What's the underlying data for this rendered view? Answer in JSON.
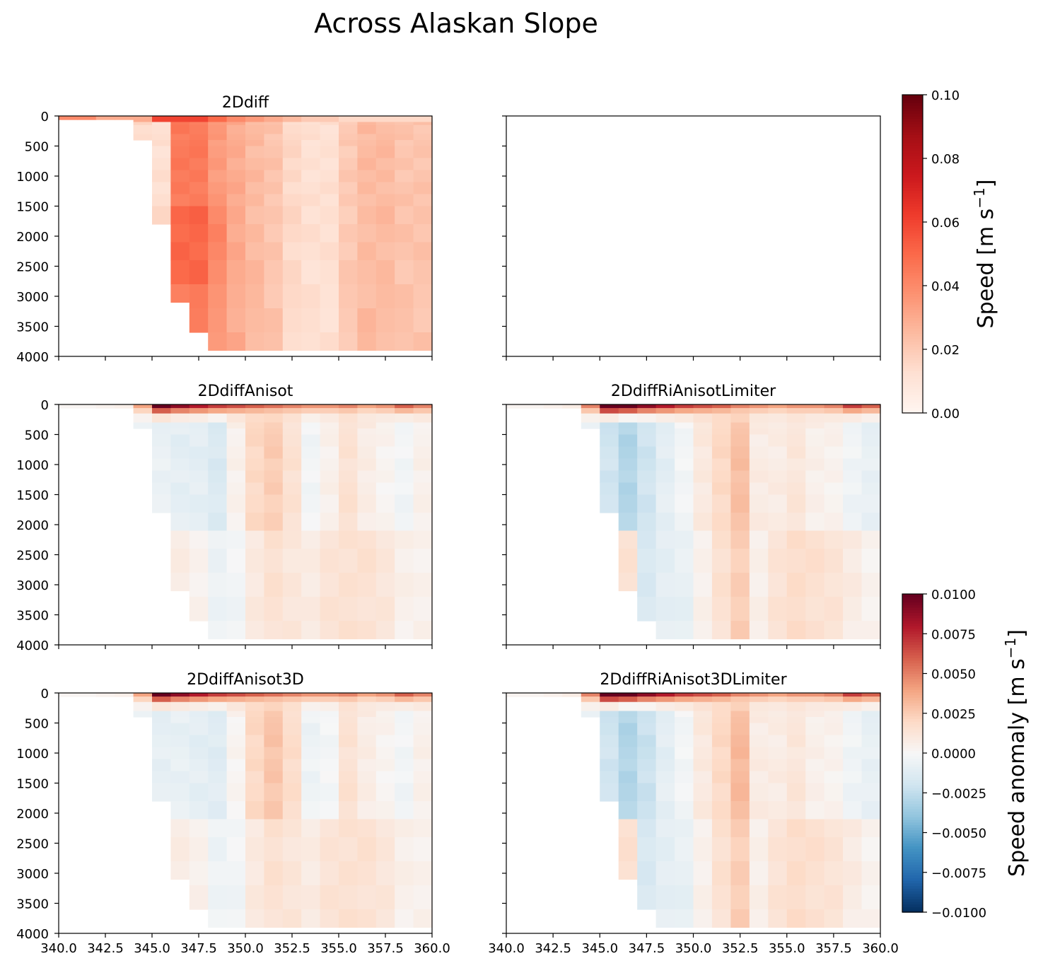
{
  "figure": {
    "title": "Across Alaskan Slope",
    "subplot_titles": [
      "2Ddiff",
      "",
      "2DdiffAnisot",
      "2DdiffRiAnisotLimiter",
      "2DdiffAnisot3D",
      "2DdiffRiAnisot3DLimiter"
    ]
  },
  "colorbars": {
    "speed": {
      "label": "Speed [m s",
      "label_sup": "−1",
      "label_tail": "]",
      "ticks": [
        "0.00",
        "0.02",
        "0.04",
        "0.06",
        "0.08",
        "0.10"
      ],
      "range": [
        0,
        0.1
      ],
      "colormap": "Reds"
    },
    "anomaly": {
      "label": "Speed anomaly [m s",
      "label_sup": "−1",
      "label_tail": "]",
      "ticks": [
        "−0.0100",
        "−0.0075",
        "−0.0050",
        "−0.0025",
        "0.0000",
        "0.0025",
        "0.0050",
        "0.0075",
        "0.0100"
      ],
      "range": [
        -0.01,
        0.01
      ],
      "colormap": "RdBu_r"
    }
  },
  "chart_data": [
    {
      "type": "heatmap",
      "title": "2Ddiff",
      "xlabel": "",
      "ylabel": "",
      "xlim": [
        340,
        360
      ],
      "ylim": [
        4000,
        0
      ],
      "x_edges": [
        340,
        341,
        342,
        343,
        344,
        345,
        346,
        347,
        348,
        349,
        350,
        351,
        352,
        353,
        354,
        355,
        356,
        357,
        358,
        359,
        360
      ],
      "depth_edges": [
        0,
        30,
        60,
        100,
        150,
        200,
        300,
        400,
        500,
        700,
        900,
        1100,
        1300,
        1500,
        1800,
        2100,
        2400,
        2800,
        3200,
        3600,
        3900
      ],
      "bottom_depth": [
        60,
        60,
        60,
        60,
        400,
        1800,
        3100,
        3600,
        3900,
        3900,
        3900,
        3900,
        3900,
        3900,
        3900,
        3900,
        3900,
        3900,
        3900,
        3900
      ],
      "profiles": [
        0.04,
        0.04,
        0.03,
        0.03,
        0.015,
        0.012,
        0.045,
        0.045,
        0.035,
        0.03,
        0.025,
        0.022,
        0.015,
        0.012,
        0.012,
        0.02,
        0.025,
        0.025,
        0.022,
        0.022
      ],
      "surface": [
        0.04,
        0.04,
        0.03,
        0.03,
        0.03,
        0.06,
        0.06,
        0.06,
        0.05,
        0.04,
        0.035,
        0.03,
        0.025,
        0.02,
        0.02,
        0.015,
        0.015,
        0.015,
        0.015,
        0.015
      ],
      "value_range": [
        0,
        0.1
      ]
    },
    {
      "type": "heatmap",
      "title": "",
      "xlim": [
        340,
        360
      ],
      "ylim": [
        4000,
        0
      ],
      "empty": true
    },
    {
      "type": "heatmap",
      "title": "2DdiffAnisot",
      "xlim": [
        340,
        360
      ],
      "ylim": [
        4000,
        0
      ],
      "surface": [
        0.0002,
        0.0002,
        0.0004,
        0.0006,
        0.004,
        0.011,
        0.009,
        0.008,
        0.007,
        0.0065,
        0.006,
        0.0055,
        0.005,
        0.0045,
        0.0045,
        0.005,
        0.004,
        0.0045,
        0.006,
        0.005
      ],
      "mid_profile": [
        0,
        0,
        0,
        0,
        -0.0005,
        -0.0007,
        -0.001,
        -0.001,
        -0.0015,
        0.0005,
        0.002,
        0.0025,
        0.0015,
        -0.0003,
        0.0005,
        0.0015,
        0.0008,
        0.0003,
        -0.0003,
        0.0005
      ],
      "deep_profile": [
        0,
        0,
        0,
        0,
        0,
        0.002,
        0.0008,
        0.0005,
        -0.0006,
        -0.0003,
        0.001,
        0.0015,
        0.0012,
        0.0008,
        0.0015,
        0.0015,
        0.0015,
        0.0012,
        0.0005,
        0.0005
      ],
      "value_range": [
        -0.01,
        0.01
      ]
    },
    {
      "type": "heatmap",
      "title": "2DdiffRiAnisotLimiter",
      "xlim": [
        340,
        360
      ],
      "ylim": [
        4000,
        0
      ],
      "surface": [
        0.0003,
        0.0003,
        0.0005,
        0.0008,
        0.005,
        0.012,
        0.011,
        0.009,
        0.008,
        0.007,
        0.0065,
        0.006,
        0.005,
        0.0045,
        0.004,
        0.0045,
        0.0045,
        0.005,
        0.007,
        0.006
      ],
      "mid_profile": [
        0,
        0,
        0,
        0,
        -0.0006,
        -0.002,
        -0.003,
        -0.002,
        -0.001,
        -0.0002,
        0.001,
        0.002,
        0.003,
        0.0008,
        0.0008,
        0.0012,
        0.0006,
        0.0004,
        -0.0004,
        -0.0008
      ],
      "deep_profile": [
        0,
        0,
        0,
        0,
        0,
        0.001,
        0.0015,
        -0.0015,
        -0.001,
        -0.0008,
        0.0005,
        0.0015,
        0.0025,
        0.0005,
        0.0015,
        0.0018,
        0.0016,
        0.0014,
        0.0008,
        0.0004
      ],
      "value_range": [
        -0.01,
        0.01
      ]
    },
    {
      "type": "heatmap",
      "title": "2DdiffAnisot3D",
      "xlim": [
        340,
        360
      ],
      "ylim": [
        4000,
        0
      ],
      "surface": [
        0.0002,
        0.0002,
        0.0004,
        0.0006,
        0.004,
        0.011,
        0.009,
        0.008,
        0.007,
        0.0065,
        0.006,
        0.0055,
        0.005,
        0.0045,
        0.0045,
        0.005,
        0.004,
        0.0045,
        0.006,
        0.005
      ],
      "mid_profile": [
        0,
        0,
        0,
        0,
        -0.0005,
        -0.0009,
        -0.0008,
        -0.001,
        -0.0012,
        0.0003,
        0.002,
        0.0028,
        0.0018,
        -0.0005,
        -0.0002,
        0.0015,
        0.0008,
        0.0003,
        -0.0003,
        0.0005
      ],
      "deep_profile": [
        0,
        0,
        0,
        0,
        0,
        0.0018,
        0.0008,
        0.0006,
        -0.0005,
        -0.0003,
        0.001,
        0.0015,
        0.0013,
        0.0008,
        0.0015,
        0.0015,
        0.0015,
        0.0012,
        0.0005,
        0.0005
      ],
      "value_range": [
        -0.01,
        0.01
      ]
    },
    {
      "type": "heatmap",
      "title": "2DdiffRiAnisot3DLimiter",
      "xlim": [
        340,
        360
      ],
      "ylim": [
        4000,
        0
      ],
      "surface": [
        0.0003,
        0.0003,
        0.0005,
        0.0008,
        0.005,
        0.012,
        0.011,
        0.009,
        0.008,
        0.007,
        0.0065,
        0.006,
        0.005,
        0.0045,
        0.004,
        0.0045,
        0.0045,
        0.005,
        0.007,
        0.006
      ],
      "mid_profile": [
        0,
        0,
        0,
        0,
        -0.0006,
        -0.002,
        -0.003,
        -0.0022,
        -0.001,
        -0.0002,
        0.001,
        0.002,
        0.0032,
        0.0008,
        0.0008,
        0.0012,
        0.0006,
        0.0004,
        -0.0004,
        -0.0008
      ],
      "deep_profile": [
        0,
        0,
        0,
        0,
        0,
        0.001,
        0.0016,
        -0.0015,
        -0.001,
        -0.0008,
        0.0005,
        0.0015,
        0.0025,
        0.0005,
        0.0015,
        0.0018,
        0.0016,
        0.0014,
        0.0008,
        0.0004
      ],
      "value_range": [
        -0.01,
        0.01
      ]
    }
  ],
  "axes": {
    "x_ticks": [
      "340.0",
      "342.5",
      "345.0",
      "347.5",
      "350.0",
      "352.5",
      "355.0",
      "357.5",
      "360.0"
    ],
    "x_tick_values": [
      340,
      342.5,
      345,
      347.5,
      350,
      352.5,
      355,
      357.5,
      360
    ],
    "y_ticks": [
      "0",
      "500",
      "1000",
      "1500",
      "2000",
      "2500",
      "3000",
      "3500",
      "4000"
    ],
    "y_tick_values": [
      0,
      500,
      1000,
      1500,
      2000,
      2500,
      3000,
      3500,
      4000
    ]
  }
}
